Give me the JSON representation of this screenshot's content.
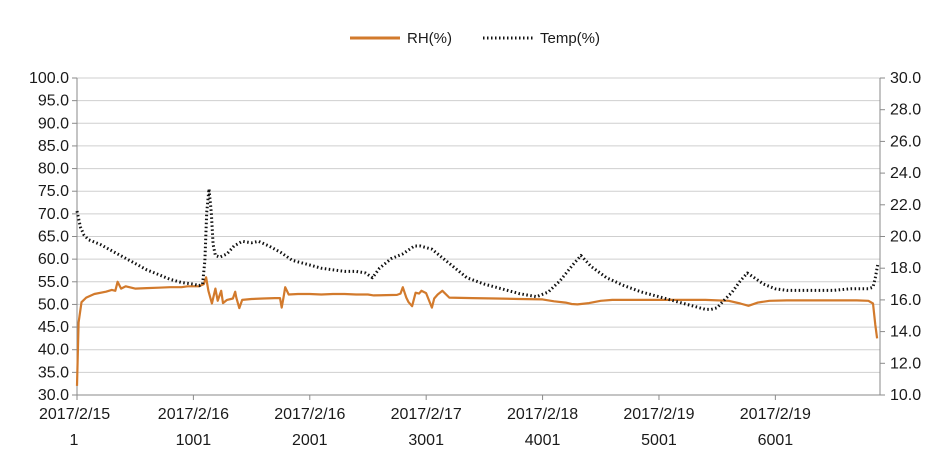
{
  "chart_data": {
    "type": "line",
    "title": "",
    "xlabel": "",
    "ylabel": "",
    "y2label": "",
    "legend": {
      "placement": "top-center"
    },
    "grid": true,
    "ylim": [
      30,
      100
    ],
    "y_ticks": [
      30,
      35,
      40,
      45,
      50,
      55,
      60,
      65,
      70,
      75,
      80,
      85,
      90,
      95,
      100
    ],
    "y2lim": [
      10,
      30
    ],
    "y2_ticks": [
      10,
      12,
      14,
      16,
      18,
      20,
      22,
      24,
      26,
      28,
      30
    ],
    "xlim": [
      1,
      6900
    ],
    "x_ticks": [
      {
        "x": 1,
        "date": "2017/2/15",
        "index": "1"
      },
      {
        "x": 1001,
        "date": "2017/2/16",
        "index": "1001"
      },
      {
        "x": 2001,
        "date": "2017/2/16",
        "index": "2001"
      },
      {
        "x": 3001,
        "date": "2017/2/17",
        "index": "3001"
      },
      {
        "x": 4001,
        "date": "2017/2/18",
        "index": "4001"
      },
      {
        "x": 5001,
        "date": "2017/2/19",
        "index": "5001"
      },
      {
        "x": 6001,
        "date": "2017/2/19",
        "index": "6001"
      }
    ],
    "series": [
      {
        "name": "RH(%)",
        "axis": "left",
        "style": "solid",
        "color": "#d27a2c",
        "points": [
          [
            1,
            32
          ],
          [
            15,
            46
          ],
          [
            40,
            50.5
          ],
          [
            80,
            51.5
          ],
          [
            150,
            52.3
          ],
          [
            250,
            52.8
          ],
          [
            300,
            53.2
          ],
          [
            330,
            53
          ],
          [
            350,
            55
          ],
          [
            380,
            53.5
          ],
          [
            420,
            54
          ],
          [
            500,
            53.5
          ],
          [
            600,
            53.6
          ],
          [
            700,
            53.7
          ],
          [
            800,
            53.8
          ],
          [
            900,
            53.8
          ],
          [
            950,
            54
          ],
          [
            1050,
            54
          ],
          [
            1090,
            54.5
          ],
          [
            1110,
            56
          ],
          [
            1130,
            53
          ],
          [
            1160,
            50.2
          ],
          [
            1190,
            53.5
          ],
          [
            1210,
            50.8
          ],
          [
            1240,
            53
          ],
          [
            1255,
            50.3
          ],
          [
            1290,
            51
          ],
          [
            1340,
            51.3
          ],
          [
            1360,
            52.8
          ],
          [
            1370,
            51.5
          ],
          [
            1395,
            49.2
          ],
          [
            1420,
            51
          ],
          [
            1500,
            51.2
          ],
          [
            1600,
            51.3
          ],
          [
            1700,
            51.4
          ],
          [
            1745,
            51.4
          ],
          [
            1760,
            49.3
          ],
          [
            1775,
            51.5
          ],
          [
            1790,
            53.8
          ],
          [
            1820,
            52.2
          ],
          [
            1900,
            52.3
          ],
          [
            2000,
            52.3
          ],
          [
            2100,
            52.2
          ],
          [
            2200,
            52.3
          ],
          [
            2300,
            52.3
          ],
          [
            2400,
            52.2
          ],
          [
            2500,
            52.2
          ],
          [
            2550,
            52
          ],
          [
            2750,
            52.1
          ],
          [
            2780,
            52.4
          ],
          [
            2800,
            53.8
          ],
          [
            2830,
            51.5
          ],
          [
            2850,
            50.5
          ],
          [
            2880,
            49.6
          ],
          [
            2910,
            52.6
          ],
          [
            2940,
            52.4
          ],
          [
            2960,
            53
          ],
          [
            3000,
            52.5
          ],
          [
            3050,
            49.3
          ],
          [
            3070,
            51.3
          ],
          [
            3100,
            52.2
          ],
          [
            3140,
            53
          ],
          [
            3200,
            51.5
          ],
          [
            3400,
            51.4
          ],
          [
            3600,
            51.3
          ],
          [
            3800,
            51.2
          ],
          [
            4000,
            51.1
          ],
          [
            4100,
            50.7
          ],
          [
            4200,
            50.4
          ],
          [
            4250,
            50.1
          ],
          [
            4300,
            50
          ],
          [
            4400,
            50.3
          ],
          [
            4500,
            50.8
          ],
          [
            4600,
            51
          ],
          [
            4800,
            51
          ],
          [
            5000,
            51
          ],
          [
            5200,
            51
          ],
          [
            5400,
            51
          ],
          [
            5600,
            50.8
          ],
          [
            5700,
            50.2
          ],
          [
            5770,
            49.7
          ],
          [
            5850,
            50.4
          ],
          [
            5950,
            50.8
          ],
          [
            6100,
            50.9
          ],
          [
            6300,
            50.9
          ],
          [
            6500,
            50.9
          ],
          [
            6700,
            50.9
          ],
          [
            6800,
            50.8
          ],
          [
            6840,
            50.2
          ],
          [
            6860,
            45.5
          ],
          [
            6875,
            42.5
          ]
        ]
      },
      {
        "name": "Temp(%)",
        "axis": "right",
        "style": "dotted",
        "color": "#111111",
        "points": [
          [
            1,
            21.6
          ],
          [
            30,
            20.6
          ],
          [
            60,
            20.1
          ],
          [
            100,
            19.8
          ],
          [
            200,
            19.5
          ],
          [
            300,
            19.1
          ],
          [
            400,
            18.7
          ],
          [
            500,
            18.3
          ],
          [
            600,
            17.9
          ],
          [
            700,
            17.6
          ],
          [
            800,
            17.3
          ],
          [
            900,
            17.1
          ],
          [
            1000,
            17
          ],
          [
            1050,
            16.9
          ],
          [
            1080,
            17
          ],
          [
            1100,
            18.5
          ],
          [
            1115,
            21.5
          ],
          [
            1135,
            23
          ],
          [
            1155,
            21.5
          ],
          [
            1170,
            19.5
          ],
          [
            1190,
            18.8
          ],
          [
            1230,
            18.7
          ],
          [
            1290,
            18.9
          ],
          [
            1350,
            19.4
          ],
          [
            1420,
            19.7
          ],
          [
            1500,
            19.6
          ],
          [
            1560,
            19.7
          ],
          [
            1650,
            19.4
          ],
          [
            1750,
            19
          ],
          [
            1850,
            18.5
          ],
          [
            2000,
            18.2
          ],
          [
            2100,
            18
          ],
          [
            2200,
            17.9
          ],
          [
            2300,
            17.8
          ],
          [
            2400,
            17.8
          ],
          [
            2480,
            17.7
          ],
          [
            2540,
            17.4
          ],
          [
            2600,
            18
          ],
          [
            2700,
            18.6
          ],
          [
            2800,
            18.9
          ],
          [
            2900,
            19.4
          ],
          [
            2950,
            19.4
          ],
          [
            3050,
            19.2
          ],
          [
            3150,
            18.6
          ],
          [
            3250,
            18
          ],
          [
            3350,
            17.4
          ],
          [
            3500,
            17
          ],
          [
            3650,
            16.7
          ],
          [
            3800,
            16.4
          ],
          [
            3950,
            16.2
          ],
          [
            4050,
            16.5
          ],
          [
            4150,
            17.2
          ],
          [
            4260,
            18.2
          ],
          [
            4330,
            18.8
          ],
          [
            4420,
            18.1
          ],
          [
            4550,
            17.4
          ],
          [
            4700,
            16.9
          ],
          [
            4850,
            16.5
          ],
          [
            5000,
            16.2
          ],
          [
            5100,
            16
          ],
          [
            5200,
            15.8
          ],
          [
            5300,
            15.6
          ],
          [
            5400,
            15.4
          ],
          [
            5450,
            15.4
          ],
          [
            5500,
            15.5
          ],
          [
            5550,
            15.9
          ],
          [
            5630,
            16.5
          ],
          [
            5700,
            17.2
          ],
          [
            5760,
            17.7
          ],
          [
            5820,
            17.4
          ],
          [
            5900,
            17
          ],
          [
            6000,
            16.7
          ],
          [
            6100,
            16.6
          ],
          [
            6300,
            16.6
          ],
          [
            6500,
            16.6
          ],
          [
            6650,
            16.7
          ],
          [
            6800,
            16.7
          ],
          [
            6840,
            16.8
          ],
          [
            6860,
            17.4
          ],
          [
            6880,
            18.2
          ]
        ]
      }
    ]
  }
}
